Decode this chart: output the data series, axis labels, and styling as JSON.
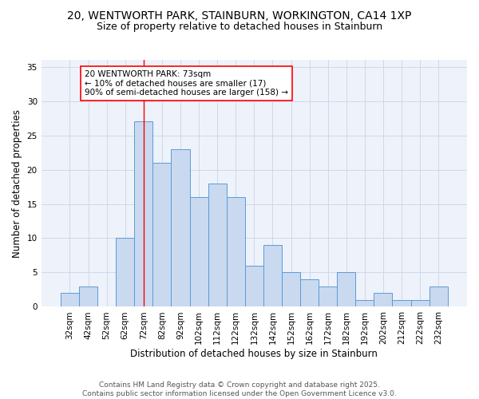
{
  "title_line1": "20, WENTWORTH PARK, STAINBURN, WORKINGTON, CA14 1XP",
  "title_line2": "Size of property relative to detached houses in Stainburn",
  "xlabel": "Distribution of detached houses by size in Stainburn",
  "ylabel": "Number of detached properties",
  "categories": [
    "32sqm",
    "42sqm",
    "52sqm",
    "62sqm",
    "72sqm",
    "82sqm",
    "92sqm",
    "102sqm",
    "112sqm",
    "122sqm",
    "132sqm",
    "142sqm",
    "152sqm",
    "162sqm",
    "172sqm",
    "182sqm",
    "192sqm",
    "202sqm",
    "212sqm",
    "222sqm",
    "232sqm"
  ],
  "values": [
    2,
    3,
    0,
    10,
    27,
    21,
    23,
    16,
    18,
    16,
    6,
    9,
    5,
    4,
    3,
    5,
    1,
    2,
    1,
    1,
    3
  ],
  "bar_color": "#c9d9f0",
  "bar_edge_color": "#5b9bd5",
  "vline_x_index": 4,
  "vline_color": "red",
  "annotation_text": "20 WENTWORTH PARK: 73sqm\n← 10% of detached houses are smaller (17)\n90% of semi-detached houses are larger (158) →",
  "annotation_box_color": "white",
  "annotation_box_edge_color": "red",
  "ylim": [
    0,
    36
  ],
  "yticks": [
    0,
    5,
    10,
    15,
    20,
    25,
    30,
    35
  ],
  "grid_color": "#d0d8e8",
  "bg_color": "#eef2fa",
  "footer_text": "Contains HM Land Registry data © Crown copyright and database right 2025.\nContains public sector information licensed under the Open Government Licence v3.0.",
  "title_fontsize": 10,
  "subtitle_fontsize": 9,
  "axis_label_fontsize": 8.5,
  "tick_fontsize": 7.5,
  "annotation_fontsize": 7.5,
  "footer_fontsize": 6.5
}
